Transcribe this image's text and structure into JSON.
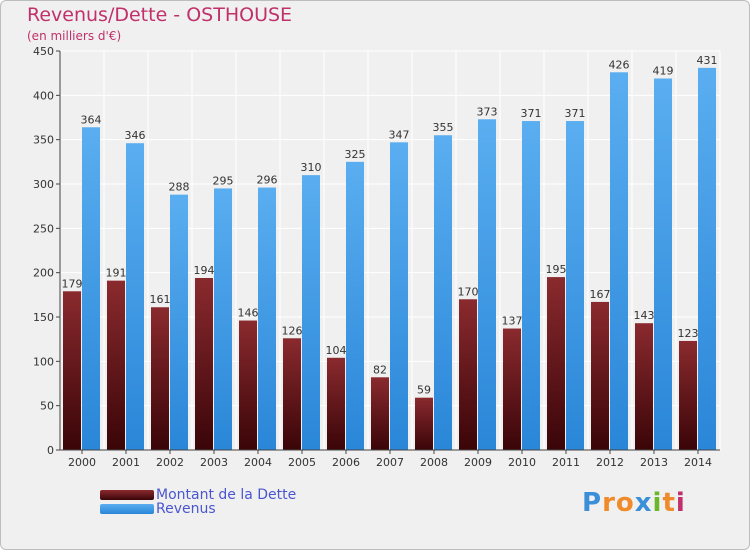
{
  "header": {
    "title": "Revenus/Dette - OSTHOUSE",
    "subtitle": "(en milliers d'€)"
  },
  "colors": {
    "title": "#c0306a",
    "legend_text": "#4a56d0",
    "dette_top": "#8a2a2e",
    "dette_bottom": "#3a0508",
    "revenus_top": "#5aaef0",
    "revenus_bottom": "#2a86d8",
    "grid": "#ffffff",
    "plot_bg": "#f0f0f0"
  },
  "chart_data": {
    "type": "bar",
    "categories": [
      "2000",
      "2001",
      "2002",
      "2003",
      "2004",
      "2005",
      "2006",
      "2007",
      "2008",
      "2009",
      "2010",
      "2011",
      "2012",
      "2013",
      "2014"
    ],
    "series": [
      {
        "name": "Montant de la Dette",
        "values": [
          179,
          191,
          161,
          194,
          146,
          126,
          104,
          82,
          59,
          170,
          137,
          195,
          167,
          143,
          123
        ]
      },
      {
        "name": "Revenus",
        "values": [
          364,
          346,
          288,
          295,
          296,
          310,
          325,
          347,
          355,
          373,
          371,
          371,
          426,
          419,
          431
        ]
      }
    ],
    "ylim": [
      0,
      450
    ],
    "yticks": [
      0,
      50,
      100,
      150,
      200,
      250,
      300,
      350,
      400,
      450
    ],
    "grid": true,
    "legend": "bottom-left"
  },
  "logo": {
    "text": "Proxiti",
    "letters": [
      {
        "ch": "P",
        "color": "#3a8fd8"
      },
      {
        "ch": "r",
        "color": "#f08a2a"
      },
      {
        "ch": "o",
        "color": "#f08a2a"
      },
      {
        "ch": "x",
        "color": "#3a8fd8"
      },
      {
        "ch": "i",
        "color": "#6ab82a"
      },
      {
        "ch": "t",
        "color": "#f08a2a"
      },
      {
        "ch": "i",
        "color": "#c0306a"
      }
    ]
  }
}
